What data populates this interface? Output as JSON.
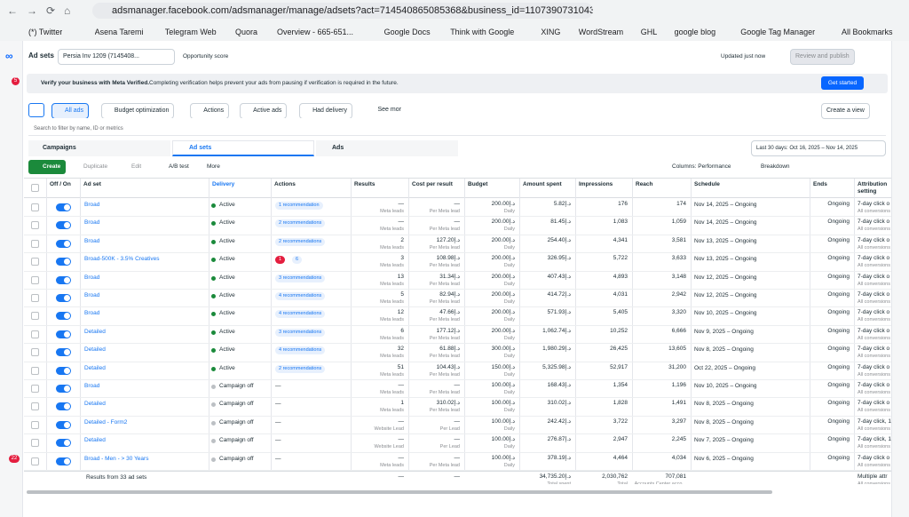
{
  "browser": {
    "url": "adsmanager.facebook.com/adsmanager/manage/adsets?act=714540865085368&business_id=1107390731043403&...",
    "bookmarks": [
      "(*) Twitter",
      "Asena Taremi",
      "Telegram Web",
      "Quora",
      "Overview - 665-651...",
      "Google Docs",
      "Think with Google",
      "XING",
      "WordStream",
      "GHL",
      "google blog",
      "Google Tag Manager"
    ],
    "all_bookmarks": "All Bookmarks"
  },
  "sidebar": {
    "badge_top": "5",
    "badge_bottom": "22"
  },
  "header": {
    "title": "Ad sets",
    "account": "Persia Inv 1209 (7145408...",
    "opportunity": "Opportunity score",
    "updated": "Updated just now",
    "publish": "Review and publish"
  },
  "banner": {
    "title": "Verify your business with Meta Verified.",
    "text": "Completing verification helps prevent your ads from pausing if verification is required in the future.",
    "button": "Get started"
  },
  "toolbar": {
    "filters": [
      "All ads",
      "Budget optimization",
      "Actions",
      "Active ads",
      "Had delivery",
      "See more"
    ],
    "create_view": "Create a view",
    "search": "Search to filter by name, ID or metrics"
  },
  "tabs": {
    "items": [
      "Campaigns",
      "Ad sets",
      "Ads"
    ],
    "date": "Last 30 days: Oct 16, 2025 – Nov 14, 2025"
  },
  "actions": {
    "create": "Create",
    "duplicate": "Duplicate",
    "edit": "Edit",
    "ab": "A/B test",
    "more": "More",
    "columns": "Columns: Performance",
    "breakdown": "Breakdown"
  },
  "table": {
    "columns": [
      "Off / On",
      "Ad set",
      "Delivery",
      "Actions",
      "Results",
      "Cost per result",
      "Budget",
      "Amount spent",
      "Impressions",
      "Reach",
      "Schedule",
      "Ends",
      "Attribution setting"
    ],
    "rows": [
      {
        "name": "Broad",
        "delivery": "Active",
        "actions": "1 recommendation",
        "results": "—",
        "results_sub": "Meta leads",
        "cost": "—",
        "cost_sub": "Per Meta lead",
        "budget": "200.00د.إ",
        "budget_sub": "Daily",
        "spent": "5.82د.إ",
        "impressions": "176",
        "reach": "174",
        "schedule": "Nov 14, 2025 – Ongoing",
        "ends": "Ongoing",
        "attribution": "7-day click o",
        "attribution_sub": "All conversions"
      },
      {
        "name": "Broad",
        "delivery": "Active",
        "actions": "2 recommendations",
        "results": "—",
        "results_sub": "Meta leads",
        "cost": "—",
        "cost_sub": "Per Meta lead",
        "budget": "200.00د.إ",
        "budget_sub": "Daily",
        "spent": "81.45د.إ",
        "impressions": "1,083",
        "reach": "1,059",
        "schedule": "Nov 14, 2025 – Ongoing",
        "ends": "Ongoing",
        "attribution": "7-day click o",
        "attribution_sub": "All conversions"
      },
      {
        "name": "Broad",
        "delivery": "Active",
        "actions": "2 recommendations",
        "results": "2",
        "results_sub": "Meta leads",
        "cost": "127.20د.إ",
        "cost_sub": "Per Meta lead",
        "budget": "200.00د.إ",
        "budget_sub": "Daily",
        "spent": "254.40د.إ",
        "impressions": "4,341",
        "reach": "3,581",
        "schedule": "Nov 13, 2025 – Ongoing",
        "ends": "Ongoing",
        "attribution": "7-day click o",
        "attribution_sub": "All conversions"
      },
      {
        "name": "Broad-500K - 3.5% Creatives",
        "delivery": "Active",
        "actions": "6",
        "alert": "1",
        "results": "3",
        "results_sub": "Meta leads",
        "cost": "108.98د.إ",
        "cost_sub": "Per Meta lead",
        "budget": "200.00د.إ",
        "budget_sub": "Daily",
        "spent": "326.95د.إ",
        "impressions": "5,722",
        "reach": "3,633",
        "schedule": "Nov 13, 2025 – Ongoing",
        "ends": "Ongoing",
        "attribution": "7-day click o",
        "attribution_sub": "All conversions"
      },
      {
        "name": "Broad",
        "delivery": "Active",
        "actions": "3 recommendations",
        "results": "13",
        "results_sub": "Meta leads",
        "cost": "31.34د.إ",
        "cost_sub": "Per Meta lead",
        "budget": "200.00د.إ",
        "budget_sub": "Daily",
        "spent": "407.43د.إ",
        "impressions": "4,893",
        "reach": "3,148",
        "schedule": "Nov 12, 2025 – Ongoing",
        "ends": "Ongoing",
        "attribution": "7-day click o",
        "attribution_sub": "All conversions"
      },
      {
        "name": "Broad",
        "delivery": "Active",
        "actions": "4 recommendations",
        "results": "5",
        "results_sub": "Meta leads",
        "cost": "82.94د.إ",
        "cost_sub": "Per Meta lead",
        "budget": "200.00د.إ",
        "budget_sub": "Daily",
        "spent": "414.72د.إ",
        "impressions": "4,031",
        "reach": "2,942",
        "schedule": "Nov 12, 2025 – Ongoing",
        "ends": "Ongoing",
        "attribution": "7-day click o",
        "attribution_sub": "All conversions"
      },
      {
        "name": "Broad",
        "delivery": "Active",
        "actions": "4 recommendations",
        "results": "12",
        "results_sub": "Meta leads",
        "cost": "47.66د.إ",
        "cost_sub": "Per Meta lead",
        "budget": "200.00د.إ",
        "budget_sub": "Daily",
        "spent": "571.93د.إ",
        "impressions": "5,405",
        "reach": "3,320",
        "schedule": "Nov 10, 2025 – Ongoing",
        "ends": "Ongoing",
        "attribution": "7-day click o",
        "attribution_sub": "All conversions"
      },
      {
        "name": "Detailed",
        "delivery": "Active",
        "actions": "3 recommendations",
        "results": "6",
        "results_sub": "Meta leads",
        "cost": "177.12د.إ",
        "cost_sub": "Per Meta lead",
        "budget": "200.00د.إ",
        "budget_sub": "Daily",
        "spent": "1,062.74د.إ",
        "impressions": "10,252",
        "reach": "6,666",
        "schedule": "Nov 9, 2025 – Ongoing",
        "ends": "Ongoing",
        "attribution": "7-day click o",
        "attribution_sub": "All conversions"
      },
      {
        "name": "Detailed",
        "delivery": "Active",
        "actions": "4 recommendations",
        "results": "32",
        "results_sub": "Meta leads",
        "cost": "61.88د.إ",
        "cost_sub": "Per Meta lead",
        "budget": "300.00د.إ",
        "budget_sub": "Daily",
        "spent": "1,980.29د.إ",
        "impressions": "26,425",
        "reach": "13,605",
        "schedule": "Nov 8, 2025 – Ongoing",
        "ends": "Ongoing",
        "attribution": "7-day click o",
        "attribution_sub": "All conversions"
      },
      {
        "name": "Detailed",
        "delivery": "Active",
        "actions": "2 recommendations",
        "results": "51",
        "results_sub": "Meta leads",
        "cost": "104.43د.إ",
        "cost_sub": "Per Meta lead",
        "budget": "150.00د.إ",
        "budget_sub": "Daily",
        "spent": "5,325.98د.إ",
        "impressions": "52,917",
        "reach": "31,200",
        "schedule": "Oct 22, 2025 – Ongoing",
        "ends": "Ongoing",
        "attribution": "7-day click o",
        "attribution_sub": "All conversions"
      },
      {
        "name": "Broad",
        "delivery": "Campaign off",
        "actions": "—",
        "results": "—",
        "results_sub": "Meta leads",
        "cost": "—",
        "cost_sub": "Per Meta lead",
        "budget": "100.00د.إ",
        "budget_sub": "Daily",
        "spent": "168.43د.إ",
        "impressions": "1,354",
        "reach": "1,196",
        "schedule": "Nov 10, 2025 – Ongoing",
        "ends": "Ongoing",
        "attribution": "7-day click o",
        "attribution_sub": "All conversions"
      },
      {
        "name": "Detailed",
        "delivery": "Campaign off",
        "actions": "—",
        "results": "1",
        "results_sub": "Meta leads",
        "cost": "310.02د.إ",
        "cost_sub": "Per Meta lead",
        "budget": "100.00د.إ",
        "budget_sub": "Daily",
        "spent": "310.02د.إ",
        "impressions": "1,828",
        "reach": "1,491",
        "schedule": "Nov 8, 2025 – Ongoing",
        "ends": "Ongoing",
        "attribution": "7-day click o",
        "attribution_sub": "All conversions"
      },
      {
        "name": "Detailed - Form2",
        "delivery": "Campaign off",
        "actions": "—",
        "results": "—",
        "results_sub": "Website Lead",
        "cost": "—",
        "cost_sub": "Per Lead",
        "budget": "100.00د.إ",
        "budget_sub": "Daily",
        "spent": "242.42د.إ",
        "impressions": "3,722",
        "reach": "3,297",
        "schedule": "Nov 8, 2025 – Ongoing",
        "ends": "Ongoing",
        "attribution": "7-day click, 1",
        "attribution_sub": "All conversions"
      },
      {
        "name": "Detailed",
        "delivery": "Campaign off",
        "actions": "—",
        "results": "—",
        "results_sub": "Website Lead",
        "cost": "—",
        "cost_sub": "Per Lead",
        "budget": "100.00د.إ",
        "budget_sub": "Daily",
        "spent": "276.87د.إ",
        "impressions": "2,947",
        "reach": "2,245",
        "schedule": "Nov 7, 2025 – Ongoing",
        "ends": "Ongoing",
        "attribution": "7-day click, 1",
        "attribution_sub": "All conversions"
      },
      {
        "name": "Broad - Men - > 30 Years",
        "delivery": "Campaign off",
        "actions": "—",
        "results": "—",
        "results_sub": "Meta leads",
        "cost": "—",
        "cost_sub": "Per Meta lead",
        "budget": "100.00د.إ",
        "budget_sub": "Daily",
        "spent": "378.19د.إ",
        "impressions": "4,464",
        "reach": "4,034",
        "schedule": "Nov 6, 2025 – Ongoing",
        "ends": "Ongoing",
        "attribution": "7-day click o",
        "attribution_sub": "All conversions"
      }
    ],
    "totals": {
      "label": "Results from 33 ad sets",
      "results": "—",
      "cost": "—",
      "spent": "34,735.20د.إ",
      "spent_sub": "Total spent",
      "impressions": "2,030,762",
      "impressions_sub": "Total",
      "reach": "707,081",
      "reach_sub": "Accounts Center acco...",
      "attribution": "Multiple attr",
      "attribution_sub": "All conversions"
    }
  }
}
